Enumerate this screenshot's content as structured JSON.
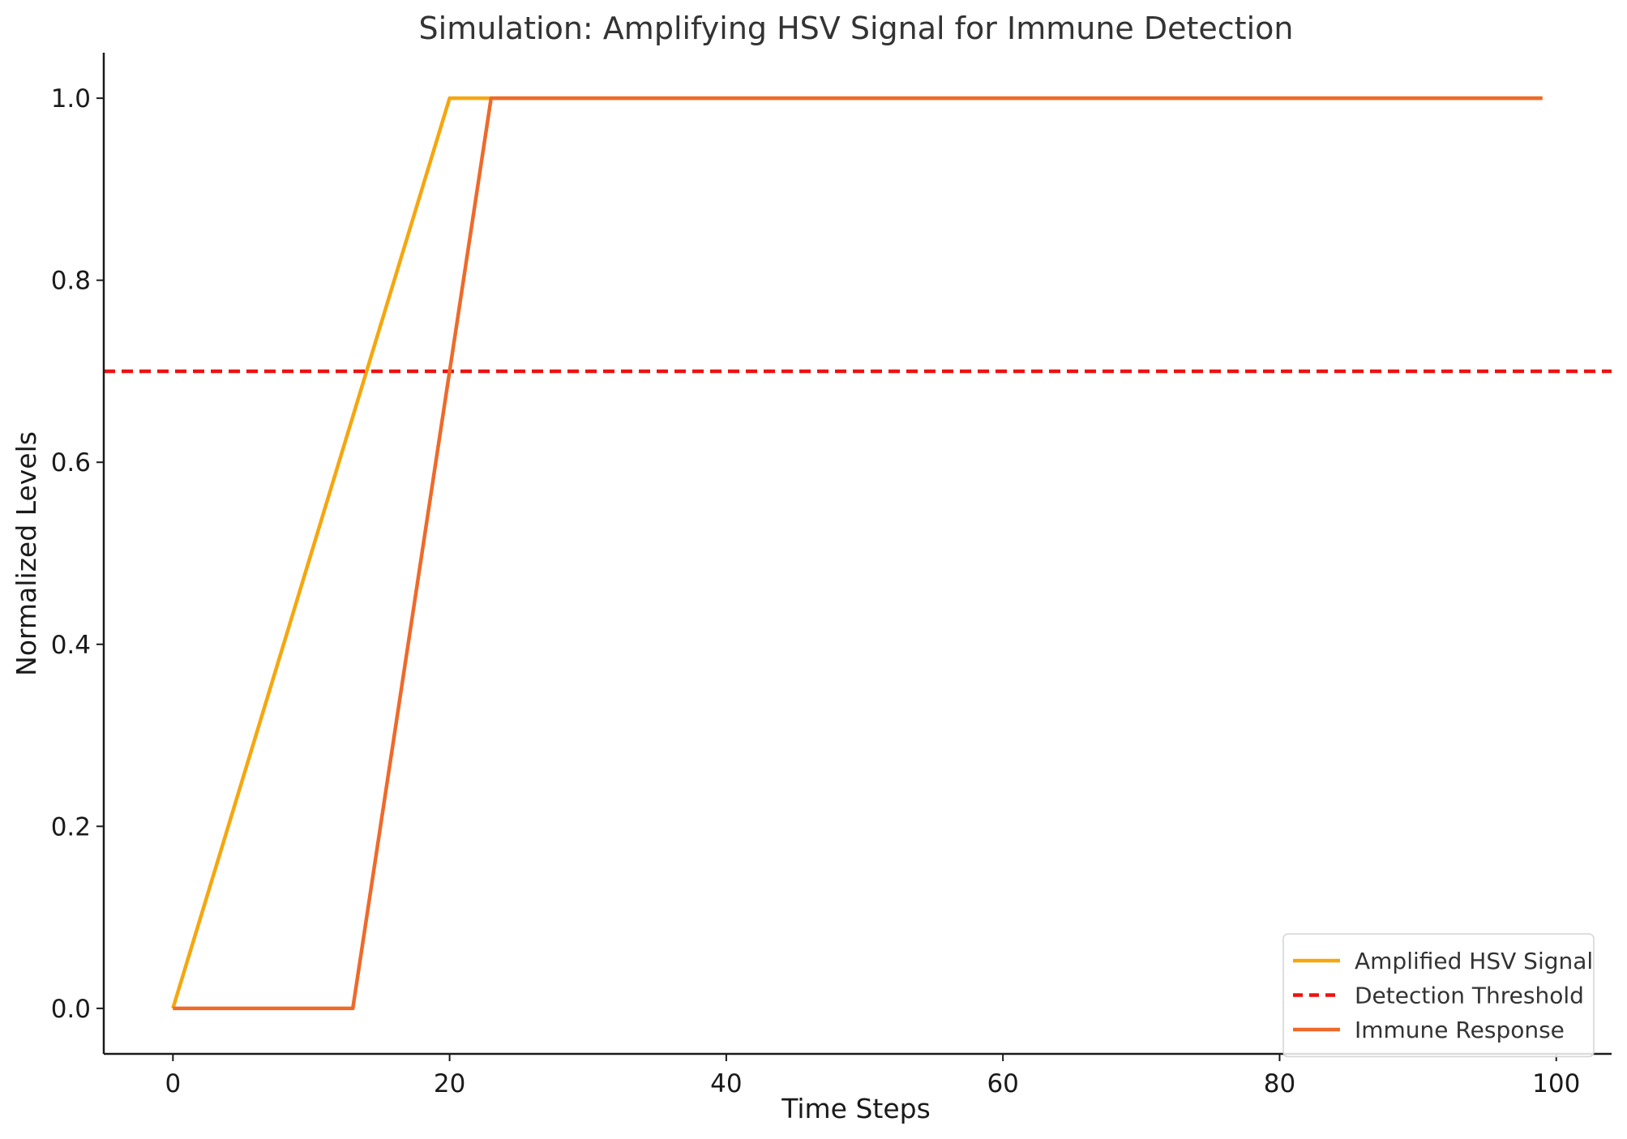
{
  "chart_data": {
    "type": "line",
    "title": "Simulation: Amplifying HSV Signal for Immune Detection",
    "xlabel": "Time Steps",
    "ylabel": "Normalized Levels",
    "xlim": [
      -5,
      104
    ],
    "ylim": [
      -0.05,
      1.05
    ],
    "xticks": [
      0,
      20,
      40,
      60,
      80,
      100
    ],
    "yticks": [
      0.0,
      0.2,
      0.4,
      0.6,
      0.8,
      1.0
    ],
    "xtick_labels": [
      "0",
      "20",
      "40",
      "60",
      "80",
      "100"
    ],
    "ytick_labels": [
      "0.0",
      "0.2",
      "0.4",
      "0.6",
      "0.8",
      "1.0"
    ],
    "grid": false,
    "legend_position": "bottom-right",
    "series": [
      {
        "name": "Amplified HSV Signal",
        "color": "#F5A70E",
        "style": "solid",
        "x": [
          0,
          20,
          99
        ],
        "y": [
          0.0,
          1.0,
          1.0
        ]
      },
      {
        "name": "Detection Threshold",
        "color": "#EE1111",
        "style": "dashed",
        "x": [
          -5,
          104
        ],
        "y": [
          0.7,
          0.7
        ]
      },
      {
        "name": "Immune Response",
        "color": "#EE6A2A",
        "style": "solid",
        "x": [
          0,
          13,
          23,
          99
        ],
        "y": [
          0.0,
          0.0,
          1.0,
          1.0
        ]
      }
    ]
  }
}
